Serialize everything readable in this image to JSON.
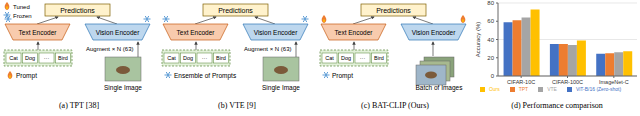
{
  "legend": [
    {
      "label": "Tuned",
      "state": "tuned"
    },
    {
      "label": "Frozen",
      "state": "frozen"
    }
  ],
  "panels": [
    {
      "caption": "(a) TPT [38]",
      "output": "Predictions",
      "text_encoder": {
        "label": "Text Encoder",
        "state": "frozen"
      },
      "vision_encoder": {
        "label": "Vision Encoder",
        "state": "frozen"
      },
      "prompt": {
        "label": "Prompt",
        "state": "tuned"
      },
      "classes": [
        "Cat",
        "Dog",
        "···",
        "Bird"
      ],
      "augment": "Augment × N (63)",
      "input": "Single Image",
      "input_type": "single"
    },
    {
      "caption": "(b) VTE [9]",
      "output": "Predictions",
      "text_encoder": {
        "label": "Text Encoder",
        "state": "frozen"
      },
      "vision_encoder": {
        "label": "Vision Encoder",
        "state": "frozen"
      },
      "prompt": {
        "label": "Ensemble of Prompts",
        "state": "frozen"
      },
      "classes": [
        "Cat",
        "Dog",
        "···",
        "Bird"
      ],
      "augment": "Augment × N (63)",
      "input": "Single Image",
      "input_type": "single"
    },
    {
      "caption": "(c) BAT-CLIP (Ours)",
      "output": "Predictions",
      "text_encoder": {
        "label": "Text Encoder",
        "state": "tuned"
      },
      "vision_encoder": {
        "label": "Vision Encoder",
        "state": "tuned"
      },
      "prompt": {
        "label": "Prompt",
        "state": "frozen"
      },
      "classes": [
        "Cat",
        "Dog",
        "···",
        "Bird"
      ],
      "input": "Batch of Images",
      "input_type": "batch"
    }
  ],
  "chart_data": {
    "type": "bar",
    "title": "(d) Performance comparison",
    "y_label": "Accuracy (%)",
    "categories": [
      "CIFAR-10C",
      "CIFAR-100C",
      "ImageNet-C"
    ],
    "series": [
      {
        "name": "ViT-B/16 (Zero-shot)",
        "color": "#4472c4",
        "values": [
          59,
          35,
          24.5
        ]
      },
      {
        "name": "TPT",
        "color": "#ed7d31",
        "values": [
          61,
          35,
          25
        ]
      },
      {
        "name": "VTE",
        "color": "#a5a5a5",
        "values": [
          64,
          34,
          26
        ]
      },
      {
        "name": "Ours",
        "color": "#ffc000",
        "values": [
          73,
          39,
          27
        ]
      }
    ],
    "ylim": [
      0,
      80
    ],
    "yticks": [
      0,
      20,
      40,
      60,
      80
    ],
    "grid": true,
    "legend": "bottom"
  }
}
